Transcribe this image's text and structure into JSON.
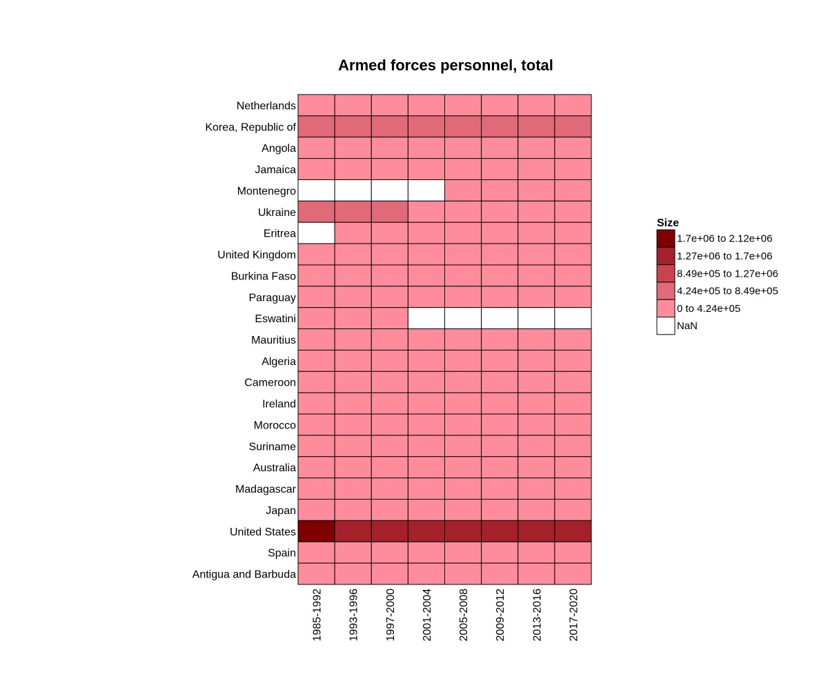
{
  "chart_data": {
    "type": "heatmap",
    "title": "Armed forces personnel, total",
    "xlabel": "",
    "ylabel": "",
    "x_categories": [
      "1985-1992",
      "1993-1996",
      "1997-2000",
      "2001-2004",
      "2005-2008",
      "2009-2012",
      "2013-2016",
      "2017-2020"
    ],
    "y_categories": [
      "Netherlands",
      "Korea, Republic of",
      "Angola",
      "Jamaica",
      "Montenegro",
      "Ukraine",
      "Eritrea",
      "United Kingdom",
      "Burkina Faso",
      "Paraguay",
      "Eswatini",
      "Mauritius",
      "Algeria",
      "Cameroon",
      "Ireland",
      "Morocco",
      "Suriname",
      "Australia",
      "Madagascar",
      "Japan",
      "United States",
      "Spain",
      "Antigua and Barbuda"
    ],
    "legend": {
      "title": "Size",
      "position": "right",
      "bins": [
        {
          "label": "1.7e+06 to 2.12e+06",
          "color": "#7f0000"
        },
        {
          "label": "1.27e+06 to 1.7e+06",
          "color": "#a4202a"
        },
        {
          "label": "8.49e+05 to 1.27e+06",
          "color": "#c9434f"
        },
        {
          "label": "4.24e+05 to 8.49e+05",
          "color": "#e06a78"
        },
        {
          "label": "0 to 4.24e+05",
          "color": "#ff8c9a"
        },
        {
          "label": "NaN",
          "color": "#ffffff"
        }
      ]
    },
    "values": [
      [
        4,
        4,
        4,
        4,
        4,
        4,
        4,
        4
      ],
      [
        3,
        3,
        3,
        3,
        3,
        3,
        3,
        3
      ],
      [
        4,
        4,
        4,
        4,
        4,
        4,
        4,
        4
      ],
      [
        4,
        4,
        4,
        4,
        4,
        4,
        4,
        4
      ],
      [
        5,
        5,
        5,
        5,
        4,
        4,
        4,
        4
      ],
      [
        3,
        3,
        3,
        4,
        4,
        4,
        4,
        4
      ],
      [
        5,
        4,
        4,
        4,
        4,
        4,
        4,
        4
      ],
      [
        4,
        4,
        4,
        4,
        4,
        4,
        4,
        4
      ],
      [
        4,
        4,
        4,
        4,
        4,
        4,
        4,
        4
      ],
      [
        4,
        4,
        4,
        4,
        4,
        4,
        4,
        4
      ],
      [
        4,
        4,
        4,
        5,
        5,
        5,
        5,
        5
      ],
      [
        4,
        4,
        4,
        4,
        4,
        4,
        4,
        4
      ],
      [
        4,
        4,
        4,
        4,
        4,
        4,
        4,
        4
      ],
      [
        4,
        4,
        4,
        4,
        4,
        4,
        4,
        4
      ],
      [
        4,
        4,
        4,
        4,
        4,
        4,
        4,
        4
      ],
      [
        4,
        4,
        4,
        4,
        4,
        4,
        4,
        4
      ],
      [
        4,
        4,
        4,
        4,
        4,
        4,
        4,
        4
      ],
      [
        4,
        4,
        4,
        4,
        4,
        4,
        4,
        4
      ],
      [
        4,
        4,
        4,
        4,
        4,
        4,
        4,
        4
      ],
      [
        4,
        4,
        4,
        4,
        4,
        4,
        4,
        4
      ],
      [
        0,
        1,
        1,
        1,
        1,
        1,
        1,
        1
      ],
      [
        4,
        4,
        4,
        4,
        4,
        4,
        4,
        4
      ],
      [
        4,
        4,
        4,
        4,
        4,
        4,
        4,
        4
      ]
    ]
  }
}
